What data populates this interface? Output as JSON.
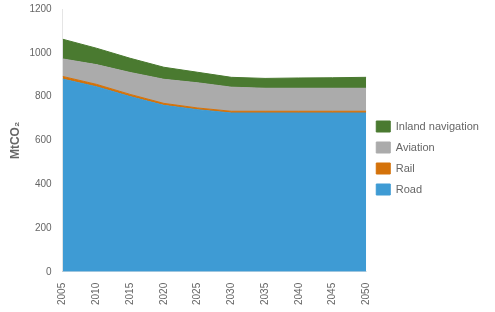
{
  "chart_data": {
    "type": "area",
    "x": [
      2005,
      2010,
      2015,
      2020,
      2025,
      2030,
      2035,
      2040,
      2045,
      2050
    ],
    "series": [
      {
        "name": "Road",
        "color": "#3E9BD4",
        "values": [
          880,
          845,
          800,
          760,
          740,
          725,
          725,
          725,
          725,
          725
        ]
      },
      {
        "name": "Rail",
        "color": "#D4720A",
        "values": [
          12,
          11,
          10,
          9,
          8,
          8,
          8,
          8,
          8,
          8
        ]
      },
      {
        "name": "Aviation",
        "color": "#ABABAB",
        "values": [
          80,
          90,
          100,
          110,
          115,
          110,
          105,
          105,
          105,
          105
        ]
      },
      {
        "name": "Inland navigation",
        "color": "#4A7A30",
        "values": [
          90,
          75,
          65,
          55,
          48,
          45,
          45,
          47,
          48,
          50
        ]
      }
    ],
    "xlim": [
      2005,
      2050
    ],
    "xticks": [
      2005,
      2010,
      2015,
      2020,
      2025,
      2030,
      2035,
      2040,
      2045,
      2050
    ],
    "ylim": [
      0,
      1200
    ],
    "yticks": [
      0,
      200,
      400,
      600,
      800,
      1000,
      1200
    ],
    "ylabel": "MtCO₂",
    "stacked": true,
    "grid": false,
    "legend": "right"
  }
}
